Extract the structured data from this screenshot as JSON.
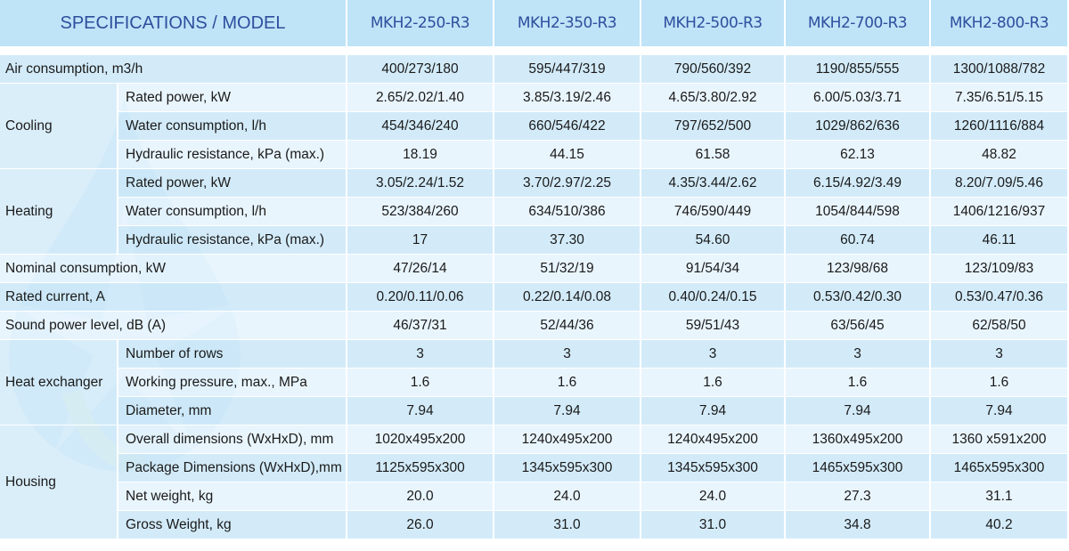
{
  "header": {
    "spec_label": "SPECIFICATIONS / MODEL",
    "models": [
      "MKH2-250-R3",
      "MKH2-350-R3",
      "MKH2-500-R3",
      "MKH2-700-R3",
      "MKH2-800-R3"
    ]
  },
  "colors": {
    "header_bg": "#bfe3f7",
    "header_text": "#2d4f9e",
    "row_dark": "#c8e6f8",
    "row_light": "#e4f3fc"
  },
  "groups": [
    {
      "label": "",
      "rows": [
        {
          "label": "Air consumption, m3/h",
          "values": [
            "400/273/180",
            "595/447/319",
            "790/560/392",
            "1190/855/555",
            "1300/1088/782"
          ]
        }
      ]
    },
    {
      "label": "Cooling",
      "rows": [
        {
          "label": "Rated power, kW",
          "values": [
            "2.65/2.02/1.40",
            "3.85/3.19/2.46",
            "4.65/3.80/2.92",
            "6.00/5.03/3.71",
            "7.35/6.51/5.15"
          ]
        },
        {
          "label": "Water consumption, l/h",
          "values": [
            "454/346/240",
            "660/546/422",
            "797/652/500",
            "1029/862/636",
            "1260/1116/884"
          ]
        },
        {
          "label": "Hydraulic resistance, kPa (max.)",
          "values": [
            "18.19",
            "44.15",
            "61.58",
            "62.13",
            "48.82"
          ]
        }
      ]
    },
    {
      "label": "Heating",
      "rows": [
        {
          "label": "Rated power, kW",
          "values": [
            "3.05/2.24/1.52",
            "3.70/2.97/2.25",
            "4.35/3.44/2.62",
            "6.15/4.92/3.49",
            "8.20/7.09/5.46"
          ]
        },
        {
          "label": "Water consumption, l/h",
          "values": [
            "523/384/260",
            "634/510/386",
            "746/590/449",
            "1054/844/598",
            "1406/1216/937"
          ]
        },
        {
          "label": "Hydraulic resistance, kPa (max.)",
          "values": [
            "17",
            "37.30",
            "54.60",
            "60.74",
            "46.11"
          ]
        }
      ]
    },
    {
      "label": "",
      "rows": [
        {
          "label": "Nominal consumption, kW",
          "values": [
            "47/26/14",
            "51/32/19",
            "91/54/34",
            "123/98/68",
            "123/109/83"
          ]
        }
      ]
    },
    {
      "label": "",
      "rows": [
        {
          "label": "Rated current, A",
          "values": [
            "0.20/0.11/0.06",
            "0.22/0.14/0.08",
            "0.40/0.24/0.15",
            "0.53/0.42/0.30",
            "0.53/0.47/0.36"
          ]
        }
      ]
    },
    {
      "label": "",
      "rows": [
        {
          "label": "Sound power level, dB (A)",
          "values": [
            "46/37/31",
            "52/44/36",
            "59/51/43",
            "63/56/45",
            "62/58/50"
          ]
        }
      ]
    },
    {
      "label": "Heat exchanger",
      "rows": [
        {
          "label": "Number of rows",
          "values": [
            "3",
            "3",
            "3",
            "3",
            "3"
          ]
        },
        {
          "label": "Working pressure, max., MPa",
          "values": [
            "1.6",
            "1.6",
            "1.6",
            "1.6",
            "1.6"
          ]
        },
        {
          "label": "Diameter, mm",
          "values": [
            "7.94",
            "7.94",
            "7.94",
            "7.94",
            "7.94"
          ]
        }
      ]
    },
    {
      "label": "Housing",
      "rows": [
        {
          "label": "Overall dimensions (WxHxD), mm",
          "values": [
            "1020x495x200",
            "1240x495x200",
            "1240x495x200",
            "1360x495x200",
            "1360 x591x200"
          ]
        },
        {
          "label": "Package Dimensions (WxHxD),mm",
          "values": [
            "1125x595x300",
            "1345x595x300",
            "1345x595x300",
            "1465x595x300",
            "1465x595x300"
          ]
        },
        {
          "label": "Net weight, kg",
          "values": [
            "20.0",
            "24.0",
            "24.0",
            "27.3",
            "31.1"
          ]
        },
        {
          "label": "Gross Weight, kg",
          "values": [
            "26.0",
            "31.0",
            "31.0",
            "34.8",
            "40.2"
          ]
        }
      ]
    }
  ]
}
